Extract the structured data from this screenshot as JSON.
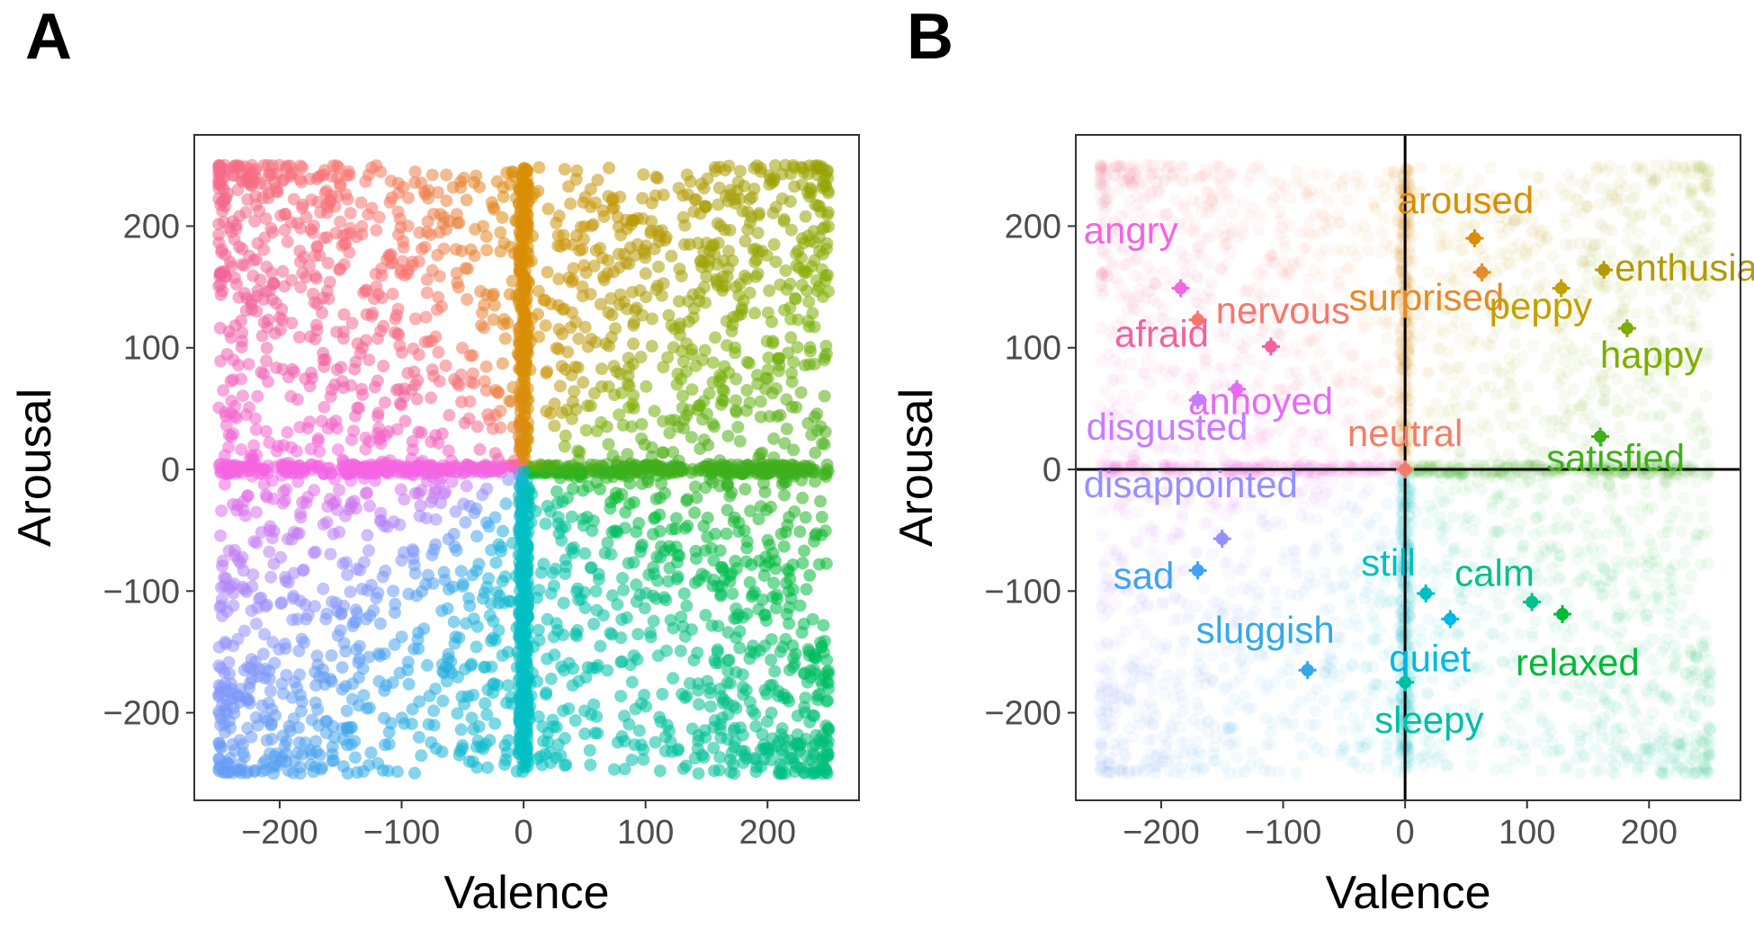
{
  "panels": {
    "a": {
      "letter": "A"
    },
    "b": {
      "letter": "B"
    }
  },
  "chart_data": [
    {
      "type": "scatter",
      "panel": "A",
      "xlabel": "Valence",
      "ylabel": "Arousal",
      "xlim": [
        -270,
        275
      ],
      "ylim": [
        -272,
        275
      ],
      "xticks": [
        -200,
        -100,
        0,
        100,
        200
      ],
      "yticks": [
        200,
        100,
        0,
        -100,
        -200
      ],
      "xtick_labels": [
        "−200",
        "−100",
        "0",
        "100",
        "200"
      ],
      "ytick_labels": [
        "200",
        "100",
        "0",
        "−100",
        "−200"
      ],
      "grid": false,
      "note_points": "thousands of individual ratings in [-250,250]x[-250,250], dense along both zero lines and in the corners, coloured by emotion term",
      "point_opacity": 0.55
    },
    {
      "type": "scatter",
      "panel": "B",
      "xlabel": "Valence",
      "ylabel": "Arousal",
      "xlim": [
        -270,
        275
      ],
      "ylim": [
        -272,
        275
      ],
      "xticks": [
        -200,
        -100,
        0,
        100,
        200
      ],
      "yticks": [
        200,
        100,
        0,
        -100,
        -200
      ],
      "xtick_labels": [
        "−200",
        "−100",
        "0",
        "100",
        "200"
      ],
      "ytick_labels": [
        "200",
        "100",
        "0",
        "−100",
        "−200"
      ],
      "grid": false,
      "reference_lines": {
        "x": 0,
        "y": 0
      },
      "background_point_opacity": 0.06,
      "series": [
        {
          "name": "aroused",
          "color": "#D98E04",
          "x": 57,
          "y": 190
        },
        {
          "name": "enthusiastic",
          "color": "#B39A06",
          "x": 163,
          "y": 164
        },
        {
          "name": "surprised",
          "color": "#E58A2B",
          "x": 63,
          "y": 162
        },
        {
          "name": "peppy",
          "color": "#C4A000",
          "x": 128,
          "y": 149
        },
        {
          "name": "happy",
          "color": "#7CAE00",
          "x": 182,
          "y": 116
        },
        {
          "name": "satisfied",
          "color": "#3FAF1C",
          "x": 160,
          "y": 27
        },
        {
          "name": "angry",
          "color": "#F564E3",
          "x": -184,
          "y": 149
        },
        {
          "name": "nervous",
          "color": "#F8766D",
          "x": -170,
          "y": 123
        },
        {
          "name": "afraid",
          "color": "#F063A0",
          "x": -110,
          "y": 101
        },
        {
          "name": "annoyed",
          "color": "#E76BF3",
          "x": -138,
          "y": 66
        },
        {
          "name": "disgusted",
          "color": "#C77CFF",
          "x": -170,
          "y": 57
        },
        {
          "name": "neutral",
          "color": "#F07F6A",
          "x": 0,
          "y": 0
        },
        {
          "name": "disappointed",
          "color": "#9590FF",
          "x": -150,
          "y": -57
        },
        {
          "name": "sad",
          "color": "#3FA2F5",
          "x": -170,
          "y": -83
        },
        {
          "name": "still",
          "color": "#00BFC4",
          "x": 17,
          "y": -102
        },
        {
          "name": "calm",
          "color": "#00C08B",
          "x": 104,
          "y": -109
        },
        {
          "name": "relaxed",
          "color": "#00BA38",
          "x": 129,
          "y": -119
        },
        {
          "name": "quiet",
          "color": "#00B8E7",
          "x": 37,
          "y": -123
        },
        {
          "name": "sluggish",
          "color": "#35A9E8",
          "x": -80,
          "y": -165
        },
        {
          "name": "sleepy",
          "color": "#00BFA6",
          "x": 0,
          "y": -175
        }
      ]
    }
  ]
}
